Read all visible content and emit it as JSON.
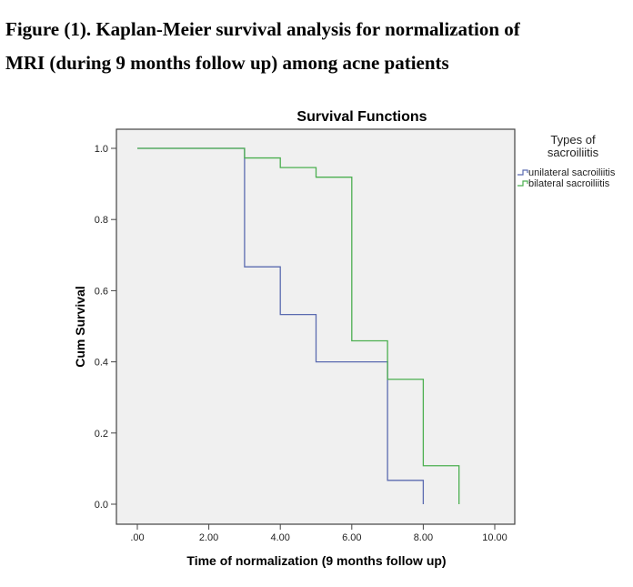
{
  "caption": {
    "line1": "Figure (1). Kaplan-Meier survival analysis for normalization of",
    "line2": "MRI (during 9 months follow up) among acne patients"
  },
  "chart_data": {
    "type": "line",
    "subtype": "step",
    "title": "Survival Functions",
    "xlabel": "Time of normalization (9 months follow up)",
    "ylabel": "Cum Survival",
    "xlim": [
      0,
      10
    ],
    "ylim": [
      0,
      1
    ],
    "xticks": [
      0,
      2,
      4,
      6,
      8,
      10
    ],
    "xtick_labels": [
      ".00",
      "2.00",
      "4.00",
      "6.00",
      "8.00",
      "10.00"
    ],
    "yticks": [
      0,
      0.2,
      0.4,
      0.6,
      0.8,
      1.0
    ],
    "ytick_labels": [
      "0.0",
      "0.2",
      "0.4",
      "0.6",
      "0.8",
      "1.0"
    ],
    "grid": false,
    "legend_title": "Types of sacroiliitis",
    "legend_title_lines": [
      "Types of",
      "sacroiliitis"
    ],
    "legend_placement": "right",
    "series": [
      {
        "name": "unilateral sacroiliitis",
        "color": "#5b6bb0",
        "times": [
          0,
          3,
          4,
          5,
          7,
          8
        ],
        "survival": [
          1.0,
          0.667,
          0.533,
          0.4,
          0.067,
          0.0
        ]
      },
      {
        "name": "bilateral sacroiliitis",
        "color": "#4caf50",
        "times": [
          0,
          3,
          4,
          5,
          6,
          7,
          8,
          9
        ],
        "survival": [
          1.0,
          0.973,
          0.946,
          0.919,
          0.459,
          0.351,
          0.108,
          0.0
        ]
      }
    ]
  }
}
